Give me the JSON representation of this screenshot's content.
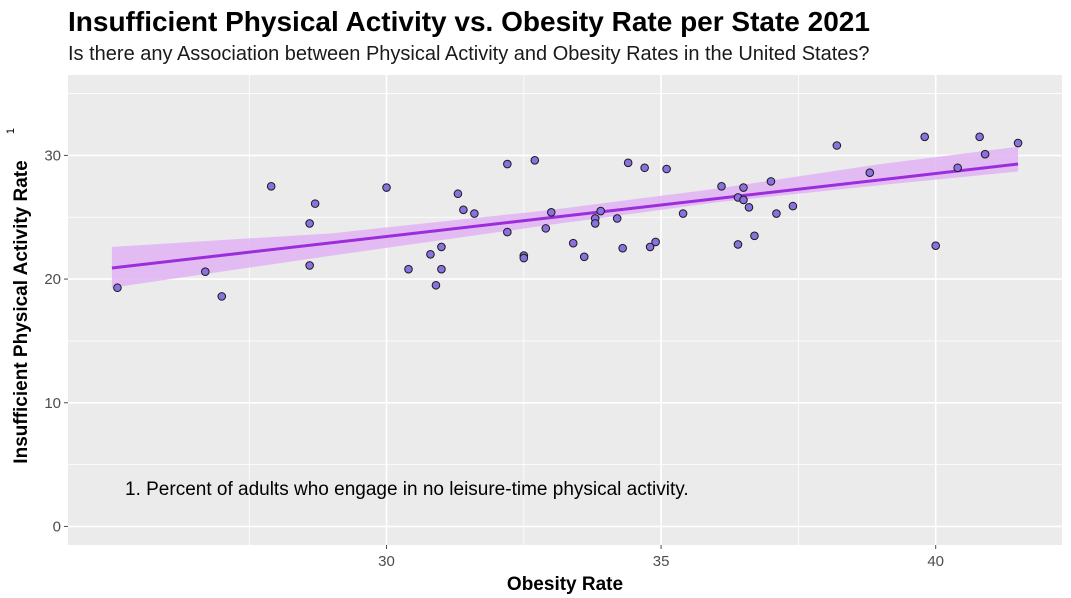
{
  "chart_data": {
    "type": "scatter",
    "title": "Insufficient Physical Activity vs. Obesity Rate per State 2021",
    "subtitle": "Is there any Association between Physical Activity and Obesity Rates in the United States?",
    "xlabel": "Obesity Rate",
    "ylabel": "Insufficient Physical Activity Rate",
    "ylabel_footnote": "1",
    "annotation": "1. Percent of adults who engage in no leisure-time physical activity.",
    "xlim": [
      24.2,
      42.3
    ],
    "ylim": [
      -1.5,
      36.5
    ],
    "x_ticks": [
      27.5,
      30,
      32.5,
      35,
      37.5,
      40
    ],
    "x_tick_labels": [
      "",
      "30",
      "",
      "35",
      "",
      "40"
    ],
    "y_ticks": [
      0,
      5,
      10,
      15,
      20,
      25,
      30,
      35
    ],
    "y_tick_labels": [
      "0",
      "",
      "10",
      "",
      "20",
      "",
      "30",
      ""
    ],
    "grid": true,
    "background": "#ebebeb",
    "point_fill": "#8a70e0",
    "point_stroke": "#1a1a1a",
    "trend_color": "#9b2ddc",
    "band_color": "#e2b3f5",
    "trend": {
      "x": [
        25.0,
        41.5
      ],
      "y": [
        20.9,
        29.3
      ]
    },
    "band": {
      "x": [
        25.0,
        29.0,
        33.0,
        36.0,
        39.0,
        41.5
      ],
      "lower": [
        19.3,
        21.9,
        24.4,
        26.2,
        27.6,
        28.7
      ],
      "upper": [
        22.6,
        23.7,
        25.6,
        27.3,
        29.3,
        30.7
      ]
    },
    "points": [
      {
        "x": 25.1,
        "y": 19.3
      },
      {
        "x": 26.7,
        "y": 20.6
      },
      {
        "x": 27.0,
        "y": 18.6
      },
      {
        "x": 27.9,
        "y": 27.5
      },
      {
        "x": 28.6,
        "y": 24.5
      },
      {
        "x": 28.7,
        "y": 26.1
      },
      {
        "x": 28.6,
        "y": 21.1
      },
      {
        "x": 30.0,
        "y": 27.4
      },
      {
        "x": 30.4,
        "y": 20.8
      },
      {
        "x": 30.8,
        "y": 22.0
      },
      {
        "x": 30.9,
        "y": 19.5
      },
      {
        "x": 31.0,
        "y": 20.8
      },
      {
        "x": 31.0,
        "y": 22.6
      },
      {
        "x": 31.3,
        "y": 26.9
      },
      {
        "x": 31.4,
        "y": 25.6
      },
      {
        "x": 31.6,
        "y": 25.3
      },
      {
        "x": 32.2,
        "y": 23.8
      },
      {
        "x": 32.2,
        "y": 29.3
      },
      {
        "x": 32.5,
        "y": 21.9
      },
      {
        "x": 32.5,
        "y": 21.7
      },
      {
        "x": 32.7,
        "y": 29.6
      },
      {
        "x": 32.9,
        "y": 24.1
      },
      {
        "x": 33.0,
        "y": 25.4
      },
      {
        "x": 33.4,
        "y": 22.9
      },
      {
        "x": 33.6,
        "y": 21.8
      },
      {
        "x": 33.8,
        "y": 24.9
      },
      {
        "x": 33.8,
        "y": 24.5
      },
      {
        "x": 33.9,
        "y": 25.5
      },
      {
        "x": 34.2,
        "y": 24.9
      },
      {
        "x": 34.3,
        "y": 22.5
      },
      {
        "x": 34.4,
        "y": 29.4
      },
      {
        "x": 34.7,
        "y": 29.0
      },
      {
        "x": 34.8,
        "y": 22.6
      },
      {
        "x": 34.9,
        "y": 23.0
      },
      {
        "x": 35.1,
        "y": 28.9
      },
      {
        "x": 35.4,
        "y": 25.3
      },
      {
        "x": 36.1,
        "y": 27.5
      },
      {
        "x": 36.4,
        "y": 26.6
      },
      {
        "x": 36.5,
        "y": 26.4
      },
      {
        "x": 36.5,
        "y": 27.4
      },
      {
        "x": 36.4,
        "y": 22.8
      },
      {
        "x": 36.6,
        "y": 25.8
      },
      {
        "x": 36.7,
        "y": 23.5
      },
      {
        "x": 37.0,
        "y": 27.9
      },
      {
        "x": 37.1,
        "y": 25.3
      },
      {
        "x": 37.4,
        "y": 25.9
      },
      {
        "x": 38.2,
        "y": 30.8
      },
      {
        "x": 38.8,
        "y": 28.6
      },
      {
        "x": 39.8,
        "y": 31.5
      },
      {
        "x": 40.0,
        "y": 22.7
      },
      {
        "x": 40.4,
        "y": 29.0
      },
      {
        "x": 40.8,
        "y": 31.5
      },
      {
        "x": 40.9,
        "y": 30.1
      },
      {
        "x": 41.5,
        "y": 31.0
      }
    ]
  }
}
